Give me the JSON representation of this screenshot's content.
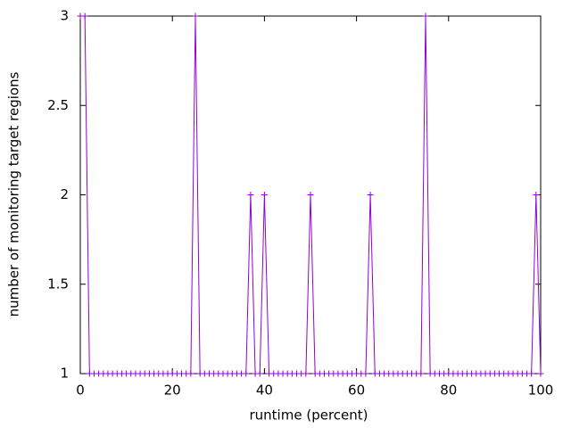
{
  "chart_data": {
    "type": "line",
    "xlabel": "runtime (percent)",
    "ylabel": "number of monitoring target regions",
    "color": "#9400d3",
    "marker": "+",
    "x": [
      0,
      1,
      2,
      3,
      4,
      5,
      6,
      7,
      8,
      9,
      10,
      11,
      12,
      13,
      14,
      15,
      16,
      17,
      18,
      19,
      20,
      21,
      22,
      23,
      24,
      25,
      26,
      27,
      28,
      29,
      30,
      31,
      32,
      33,
      34,
      35,
      36,
      37,
      38,
      39,
      40,
      41,
      42,
      43,
      44,
      45,
      46,
      47,
      48,
      49,
      50,
      51,
      52,
      53,
      54,
      55,
      56,
      57,
      58,
      59,
      60,
      61,
      62,
      63,
      64,
      65,
      66,
      67,
      68,
      69,
      70,
      71,
      72,
      73,
      74,
      75,
      76,
      77,
      78,
      79,
      80,
      81,
      82,
      83,
      84,
      85,
      86,
      87,
      88,
      89,
      90,
      91,
      92,
      93,
      94,
      95,
      96,
      97,
      98,
      99,
      100
    ],
    "values": [
      3,
      3,
      1,
      1,
      1,
      1,
      1,
      1,
      1,
      1,
      1,
      1,
      1,
      1,
      1,
      1,
      1,
      1,
      1,
      1,
      1,
      1,
      1,
      1,
      1,
      3,
      1,
      1,
      1,
      1,
      1,
      1,
      1,
      1,
      1,
      1,
      1,
      2,
      1,
      1,
      2,
      1,
      1,
      1,
      1,
      1,
      1,
      1,
      1,
      1,
      2,
      1,
      1,
      1,
      1,
      1,
      1,
      1,
      1,
      1,
      1,
      1,
      1,
      2,
      1,
      1,
      1,
      1,
      1,
      1,
      1,
      1,
      1,
      1,
      1,
      3,
      1,
      1,
      1,
      1,
      1,
      1,
      1,
      1,
      1,
      1,
      1,
      1,
      1,
      1,
      1,
      1,
      1,
      1,
      1,
      1,
      1,
      1,
      1,
      2,
      1
    ],
    "xlim": [
      0,
      100
    ],
    "xticks": [
      0,
      20,
      40,
      60,
      80,
      100
    ],
    "ylim": [
      1,
      3
    ],
    "yticks": [
      1,
      1.5,
      2,
      2.5,
      3
    ]
  }
}
